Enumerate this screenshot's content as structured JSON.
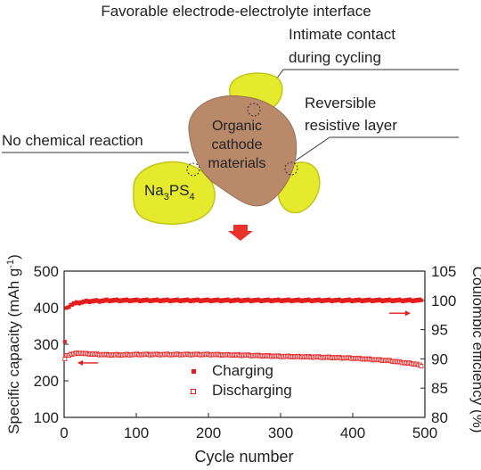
{
  "schematic": {
    "title": "Favorable electrode-electrolyte interface",
    "label_contact_line1": "Intimate contact",
    "label_contact_line2": "during cycling",
    "label_reversible_line1": "Reversible",
    "label_reversible_line2": "resistive layer",
    "label_no_reaction": "No chemical reaction",
    "cathode_line1": "Organic",
    "cathode_line2": "cathode",
    "cathode_line3": "materials",
    "electrolyte_label": "Na",
    "electrolyte_sub1": "3",
    "electrolyte_mid": "PS",
    "electrolyte_sub2": "4",
    "colors": {
      "electrolyte": "#e6ea2c",
      "cathode": "#b98a6a",
      "arrow": "#e8322a"
    },
    "icons": [
      "down-arrow-icon"
    ]
  },
  "chart_data": {
    "type": "scatter",
    "xlabel": "Cycle number",
    "ylabel_left": "Specific capacity (mAh g",
    "ylabel_left_sup": "-1",
    "ylabel_left_end": ")",
    "ylabel_right": "Coulombic efficiency (%)",
    "xlim": [
      0,
      500
    ],
    "ylim_left": [
      100,
      500
    ],
    "ylim_right": [
      80,
      105
    ],
    "x_ticks": [
      "0",
      "100",
      "200",
      "300",
      "400",
      "500"
    ],
    "y_ticks_left": [
      "100",
      "200",
      "300",
      "400",
      "500"
    ],
    "y_ticks_right": [
      "80",
      "85",
      "90",
      "95",
      "100",
      "105"
    ],
    "grid": false,
    "legend_position": "center-bottom",
    "series": [
      {
        "name": "Charging",
        "axis": "right",
        "marker": "filled-square",
        "color": "#e51d1d",
        "x": [
          1,
          2,
          3,
          4,
          5,
          6,
          8,
          10,
          15,
          20,
          25,
          30,
          40,
          50,
          60,
          80,
          100,
          120,
          150,
          175,
          200,
          250,
          300,
          350,
          400,
          450,
          480,
          490,
          495
        ],
        "y": [
          93,
          97.5,
          98.5,
          98.7,
          98.8,
          99.0,
          99.1,
          99.3,
          99.5,
          99.6,
          99.7,
          99.8,
          99.9,
          99.9,
          100,
          100,
          100,
          100,
          100,
          100,
          100,
          100,
          100,
          100,
          100,
          100,
          100,
          100,
          100
        ]
      },
      {
        "name": "Discharging",
        "axis": "left",
        "marker": "open-square",
        "color": "#e51d1d",
        "x": [
          1,
          2,
          3,
          5,
          8,
          10,
          15,
          20,
          25,
          30,
          40,
          50,
          60,
          80,
          100,
          150,
          200,
          250,
          300,
          350,
          400,
          430,
          450,
          470,
          490,
          495
        ],
        "y": [
          260,
          265,
          268,
          270,
          272,
          273,
          274,
          276,
          275,
          274,
          273,
          272,
          271,
          271,
          272,
          272,
          272,
          270,
          267,
          265,
          262,
          258,
          255,
          250,
          245,
          240
        ]
      }
    ],
    "annotations": [
      {
        "kind": "arrow",
        "direction": "right",
        "axis": "right"
      },
      {
        "kind": "arrow",
        "direction": "left",
        "axis": "left"
      }
    ]
  }
}
